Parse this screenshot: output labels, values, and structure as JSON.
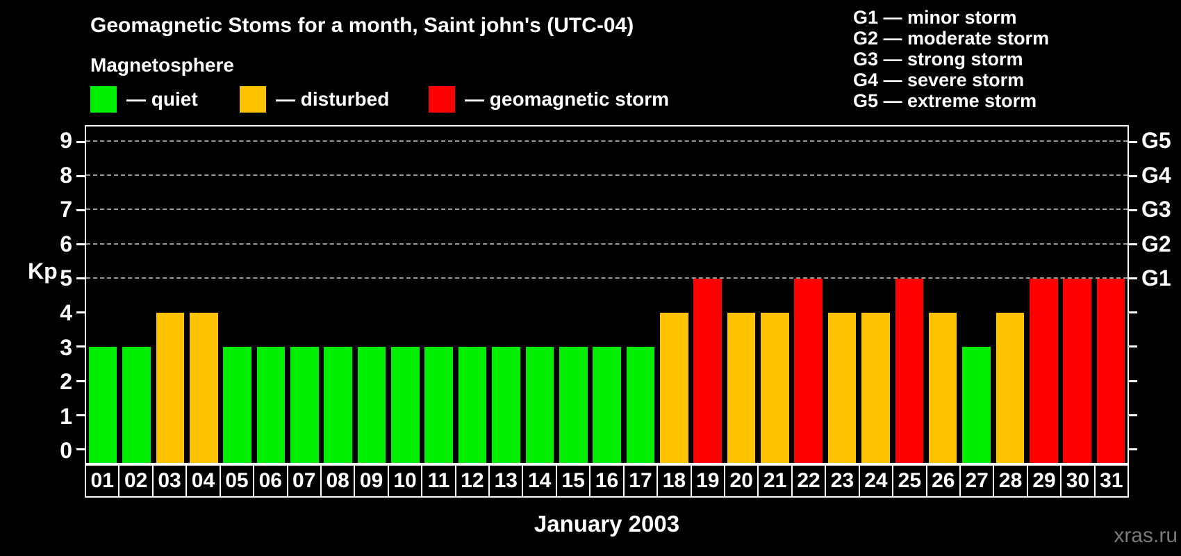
{
  "header": {
    "title": "Geomagnetic Stoms for a month, Saint john's (UTC-04)",
    "subtitle": "Magnetosphere",
    "legend": [
      {
        "state": "quiet",
        "label": "— quiet",
        "color": "#00ee00"
      },
      {
        "state": "disturbed",
        "label": "— disturbed",
        "color": "#ffc200"
      },
      {
        "state": "storm",
        "label": "— geomagnetic storm",
        "color": "#ff0000"
      }
    ],
    "g_scale": [
      "G1 — minor storm",
      "G2 — moderate storm",
      "G3 — strong storm",
      "G4 — severe storm",
      "G5 — extreme storm"
    ]
  },
  "chart_data": {
    "type": "bar",
    "title": "Geomagnetic Stoms for a month, Saint john's (UTC-04)",
    "xlabel": "January 2003",
    "ylabel": "Kp",
    "ylim": [
      -0.4,
      9.45
    ],
    "yticks": [
      0,
      1,
      2,
      3,
      4,
      5,
      6,
      7,
      8,
      9
    ],
    "gridlines_at": [
      5,
      6,
      7,
      8,
      9
    ],
    "right_axis_labels": {
      "5": "G1",
      "6": "G2",
      "7": "G3",
      "8": "G4",
      "9": "G5"
    },
    "grid": "dashed horizontal lines at storm levels only",
    "legend_position": "top-left",
    "categories": [
      "01",
      "02",
      "03",
      "04",
      "05",
      "06",
      "07",
      "08",
      "09",
      "10",
      "11",
      "12",
      "13",
      "14",
      "15",
      "16",
      "17",
      "18",
      "19",
      "20",
      "21",
      "22",
      "23",
      "24",
      "25",
      "26",
      "27",
      "28",
      "29",
      "30",
      "31"
    ],
    "values": [
      3,
      3,
      4,
      4,
      3,
      3,
      3,
      3,
      3,
      3,
      3,
      3,
      3,
      3,
      3,
      3,
      3,
      4,
      5,
      4,
      4,
      5,
      4,
      4,
      5,
      4,
      3,
      4,
      5,
      5,
      5
    ],
    "states": [
      "quiet",
      "quiet",
      "disturbed",
      "disturbed",
      "quiet",
      "quiet",
      "quiet",
      "quiet",
      "quiet",
      "quiet",
      "quiet",
      "quiet",
      "quiet",
      "quiet",
      "quiet",
      "quiet",
      "quiet",
      "disturbed",
      "storm",
      "disturbed",
      "disturbed",
      "storm",
      "disturbed",
      "disturbed",
      "storm",
      "disturbed",
      "quiet",
      "disturbed",
      "storm",
      "storm",
      "storm"
    ],
    "colors": {
      "quiet": "#00ee00",
      "disturbed": "#ffc200",
      "storm": "#ff0000"
    }
  },
  "footer": {
    "xlabel": "January 2003",
    "watermark": "xras.ru"
  }
}
